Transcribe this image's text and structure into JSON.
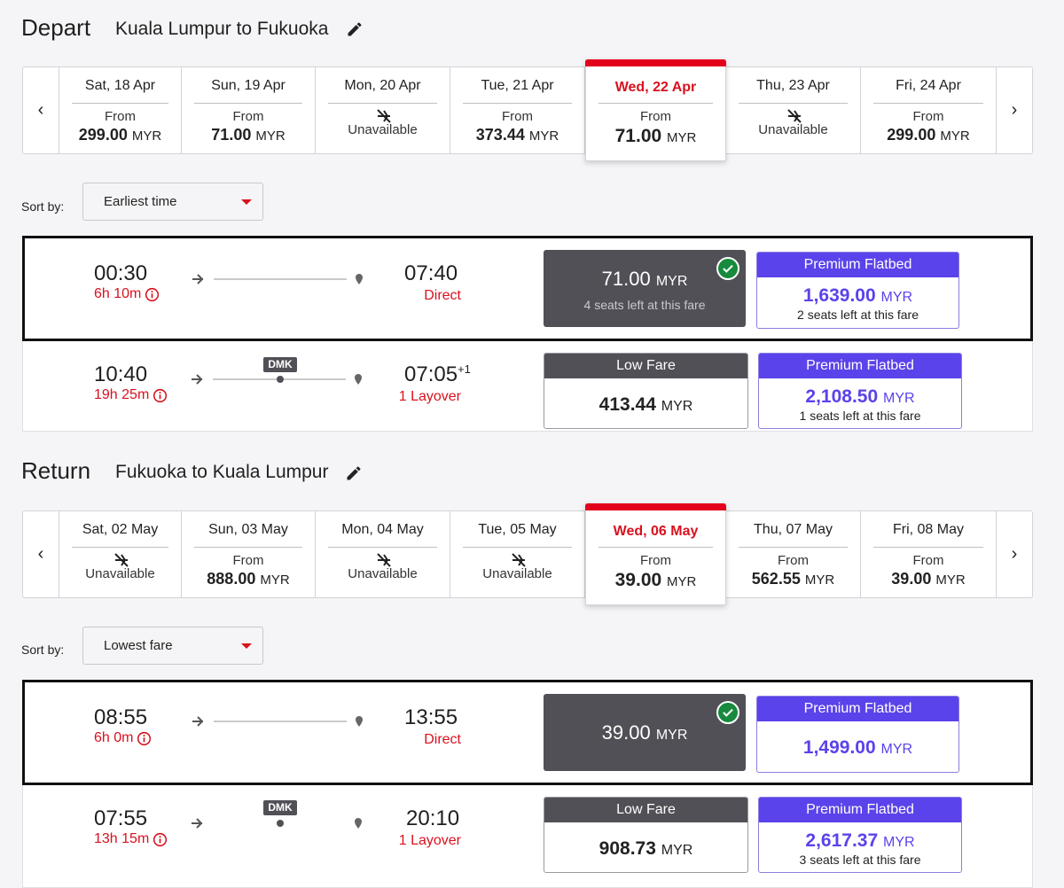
{
  "depart": {
    "heading": "Depart",
    "route": "Kuala Lumpur to Fukuoka",
    "dates": [
      {
        "label": "Sat, 18 Apr",
        "from": "From",
        "price": "299.00",
        "currency": "MYR"
      },
      {
        "label": "Sun, 19 Apr",
        "from": "From",
        "price": "71.00",
        "currency": "MYR"
      },
      {
        "label": "Mon, 20 Apr",
        "status": "Unavailable"
      },
      {
        "label": "Tue, 21 Apr",
        "from": "From",
        "price": "373.44",
        "currency": "MYR"
      },
      {
        "label": "Wed, 22 Apr",
        "from": "From",
        "price": "71.00",
        "currency": "MYR"
      },
      {
        "label": "Thu, 23 Apr",
        "status": "Unavailable"
      },
      {
        "label": "Fri, 24 Apr",
        "from": "From",
        "price": "299.00",
        "currency": "MYR"
      }
    ],
    "sort_label": "Sort by:",
    "sort_value": "Earliest time",
    "flights": [
      {
        "depart_time": "00:30",
        "duration": "6h 10m",
        "arrive_time": "07:40",
        "day_offset": "",
        "stops": "Direct",
        "via": "",
        "fare": {
          "amount": "71.00",
          "currency": "MYR",
          "seats": "4 seats left at this fare"
        },
        "premium": {
          "label": "Premium Flatbed",
          "amount": "1,639.00",
          "currency": "MYR",
          "seats": "2 seats left at this fare"
        }
      },
      {
        "depart_time": "10:40",
        "duration": "19h 25m",
        "arrive_time": "07:05",
        "day_offset": "+1",
        "stops": "1 Layover",
        "via": "DMK",
        "fare": {
          "label": "Low Fare",
          "amount": "413.44",
          "currency": "MYR"
        },
        "premium": {
          "label": "Premium Flatbed",
          "amount": "2,108.50",
          "currency": "MYR",
          "seats": "1 seats left at this fare"
        }
      }
    ]
  },
  "return": {
    "heading": "Return",
    "route": "Fukuoka to Kuala Lumpur",
    "dates": [
      {
        "label": "Sat, 02 May",
        "status": "Unavailable"
      },
      {
        "label": "Sun, 03 May",
        "from": "From",
        "price": "888.00",
        "currency": "MYR"
      },
      {
        "label": "Mon, 04 May",
        "status": "Unavailable"
      },
      {
        "label": "Tue, 05 May",
        "status": "Unavailable"
      },
      {
        "label": "Wed, 06 May",
        "from": "From",
        "price": "39.00",
        "currency": "MYR"
      },
      {
        "label": "Thu, 07 May",
        "from": "From",
        "price": "562.55",
        "currency": "MYR"
      },
      {
        "label": "Fri, 08 May",
        "from": "From",
        "price": "39.00",
        "currency": "MYR"
      }
    ],
    "sort_label": "Sort by:",
    "sort_value": "Lowest fare",
    "flights": [
      {
        "depart_time": "08:55",
        "duration": "6h 0m",
        "arrive_time": "13:55",
        "day_offset": "",
        "stops": "Direct",
        "via": "",
        "fare": {
          "amount": "39.00",
          "currency": "MYR"
        },
        "premium": {
          "label": "Premium Flatbed",
          "amount": "1,499.00",
          "currency": "MYR"
        }
      },
      {
        "depart_time": "07:55",
        "duration": "13h 15m",
        "arrive_time": "20:10",
        "day_offset": "",
        "stops": "1 Layover",
        "via": "DMK",
        "fare": {
          "label": "Low Fare",
          "amount": "908.73",
          "currency": "MYR"
        },
        "premium": {
          "label": "Premium Flatbed",
          "amount": "2,617.37",
          "currency": "MYR",
          "seats": "3 seats left at this fare"
        }
      }
    ]
  },
  "colors": {
    "accent_red": "#e3001b",
    "premium_purple": "#5a43ea",
    "fare_dark": "#505056",
    "selected_check": "#178a3d"
  },
  "icons": {
    "edit": "pencil-icon",
    "prev": "chevron-left-icon",
    "next": "chevron-right-icon",
    "unavailable": "no-flight-icon",
    "info": "info-icon",
    "plane": "plane-icon",
    "destination": "location-pin-icon",
    "selected": "check-icon",
    "dropdown": "dropdown-caret-icon"
  }
}
